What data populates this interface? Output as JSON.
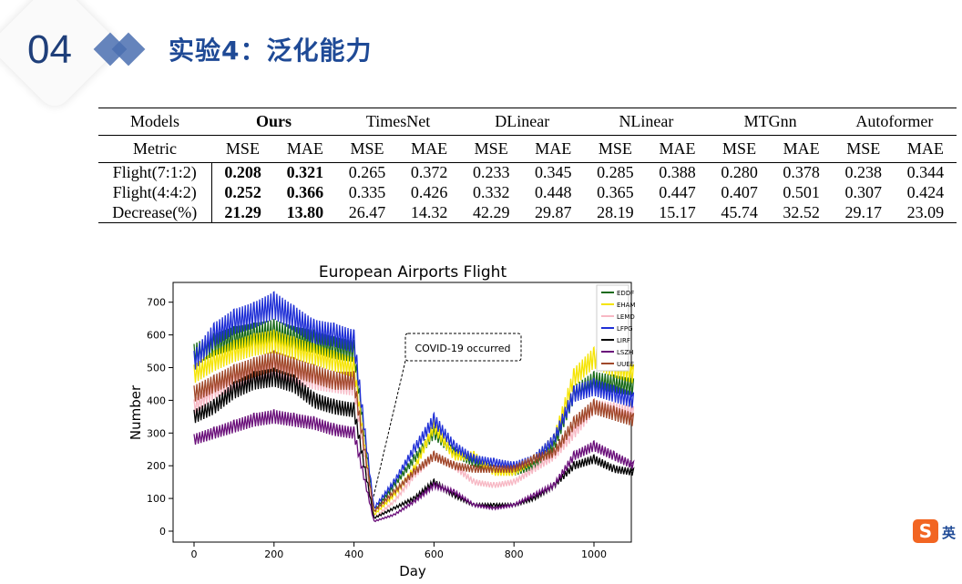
{
  "header": {
    "section_number": "04",
    "title": "实验4：泛化能力"
  },
  "table": {
    "models_label": "Models",
    "metric_label": "Metric",
    "models": [
      "Ours",
      "TimesNet",
      "DLinear",
      "NLinear",
      "MTGnn",
      "Autoformer"
    ],
    "metrics": [
      "MSE",
      "MAE"
    ],
    "rows": [
      {
        "label": "Flight(7:1:2)",
        "values": [
          "0.208",
          "0.321",
          "0.265",
          "0.372",
          "0.233",
          "0.345",
          "0.285",
          "0.388",
          "0.280",
          "0.378",
          "0.238",
          "0.344"
        ]
      },
      {
        "label": "Flight(4:4:2)",
        "values": [
          "0.252",
          "0.366",
          "0.335",
          "0.426",
          "0.332",
          "0.448",
          "0.365",
          "0.447",
          "0.407",
          "0.501",
          "0.307",
          "0.424"
        ]
      },
      {
        "label": "Decrease(%)",
        "values": [
          "21.29",
          "13.80",
          "26.47",
          "14.32",
          "42.29",
          "29.87",
          "28.19",
          "15.17",
          "45.74",
          "32.52",
          "29.17",
          "23.09"
        ]
      }
    ]
  },
  "chart_data": {
    "type": "line",
    "title": "European Airports Flight",
    "xlabel": "Day",
    "ylabel": "Number",
    "xlim": [
      -60,
      1110
    ],
    "ylim": [
      -30,
      730
    ],
    "xticks": [
      0,
      200,
      400,
      600,
      800,
      1000
    ],
    "yticks": [
      0,
      100,
      200,
      300,
      400,
      500,
      600,
      700
    ],
    "legend": "top-right",
    "annotation": "COVID-19 occurred",
    "x": [
      0,
      50,
      100,
      150,
      200,
      250,
      300,
      350,
      400,
      450,
      500,
      550,
      600,
      650,
      700,
      750,
      800,
      850,
      900,
      950,
      1000,
      1050,
      1100
    ],
    "series": [
      {
        "name": "EDDF",
        "color": "#1a6b1a",
        "values": [
          540,
          570,
          590,
          600,
          610,
          590,
          580,
          560,
          550,
          60,
          140,
          220,
          300,
          240,
          210,
          190,
          180,
          200,
          260,
          420,
          460,
          450,
          440
        ]
      },
      {
        "name": "EHAM",
        "color": "#f5e400",
        "values": [
          480,
          520,
          550,
          570,
          580,
          560,
          540,
          520,
          500,
          50,
          110,
          190,
          320,
          230,
          230,
          180,
          180,
          220,
          280,
          470,
          530,
          500,
          480
        ]
      },
      {
        "name": "LEMD",
        "color": "#f7b8c4",
        "values": [
          380,
          430,
          460,
          480,
          500,
          480,
          460,
          450,
          440,
          40,
          90,
          170,
          230,
          200,
          150,
          140,
          150,
          190,
          230,
          300,
          380,
          370,
          360
        ]
      },
      {
        "name": "LFPG",
        "color": "#1f2fd6",
        "values": [
          520,
          600,
          640,
          660,
          690,
          650,
          610,
          600,
          580,
          70,
          150,
          250,
          340,
          260,
          220,
          210,
          200,
          220,
          280,
          420,
          440,
          420,
          400
        ]
      },
      {
        "name": "LIRF",
        "color": "#000000",
        "values": [
          350,
          380,
          430,
          460,
          470,
          450,
          400,
          380,
          370,
          40,
          70,
          100,
          150,
          110,
          80,
          80,
          80,
          100,
          140,
          200,
          220,
          190,
          180
        ]
      },
      {
        "name": "LSZH",
        "color": "#6a0f7a",
        "values": [
          280,
          300,
          320,
          340,
          350,
          340,
          330,
          310,
          300,
          30,
          50,
          90,
          140,
          120,
          80,
          70,
          80,
          110,
          140,
          230,
          260,
          230,
          200
        ]
      },
      {
        "name": "UUEE",
        "color": "#a0482a",
        "values": [
          420,
          450,
          480,
          500,
          520,
          500,
          480,
          460,
          460,
          60,
          120,
          180,
          230,
          200,
          190,
          190,
          190,
          220,
          240,
          330,
          380,
          360,
          340
        ]
      }
    ]
  },
  "ime": {
    "label": "英",
    "logo": "S"
  }
}
